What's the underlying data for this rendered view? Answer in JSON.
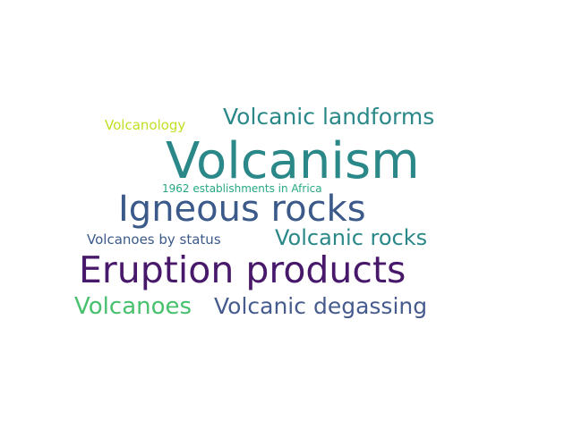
{
  "words": [
    {
      "text": "Volcanism",
      "color": "#2a8889"
    },
    {
      "text": "Eruption products",
      "color": "#48196b"
    },
    {
      "text": "Igneous rocks",
      "color": "#3b5a8a"
    },
    {
      "text": "Volcanic landforms",
      "color": "#2a8889"
    },
    {
      "text": "Volcanic rocks",
      "color": "#2a8889"
    },
    {
      "text": "Volcanic degassing",
      "color": "#465c8e"
    },
    {
      "text": "Volcanoes",
      "color": "#47c16e"
    },
    {
      "text": "Volcanoes by status",
      "color": "#3b5a8a"
    },
    {
      "text": "Volcanology",
      "color": "#c2df23"
    },
    {
      "text": "1962 establishments in Africa",
      "color": "#25a882"
    }
  ]
}
